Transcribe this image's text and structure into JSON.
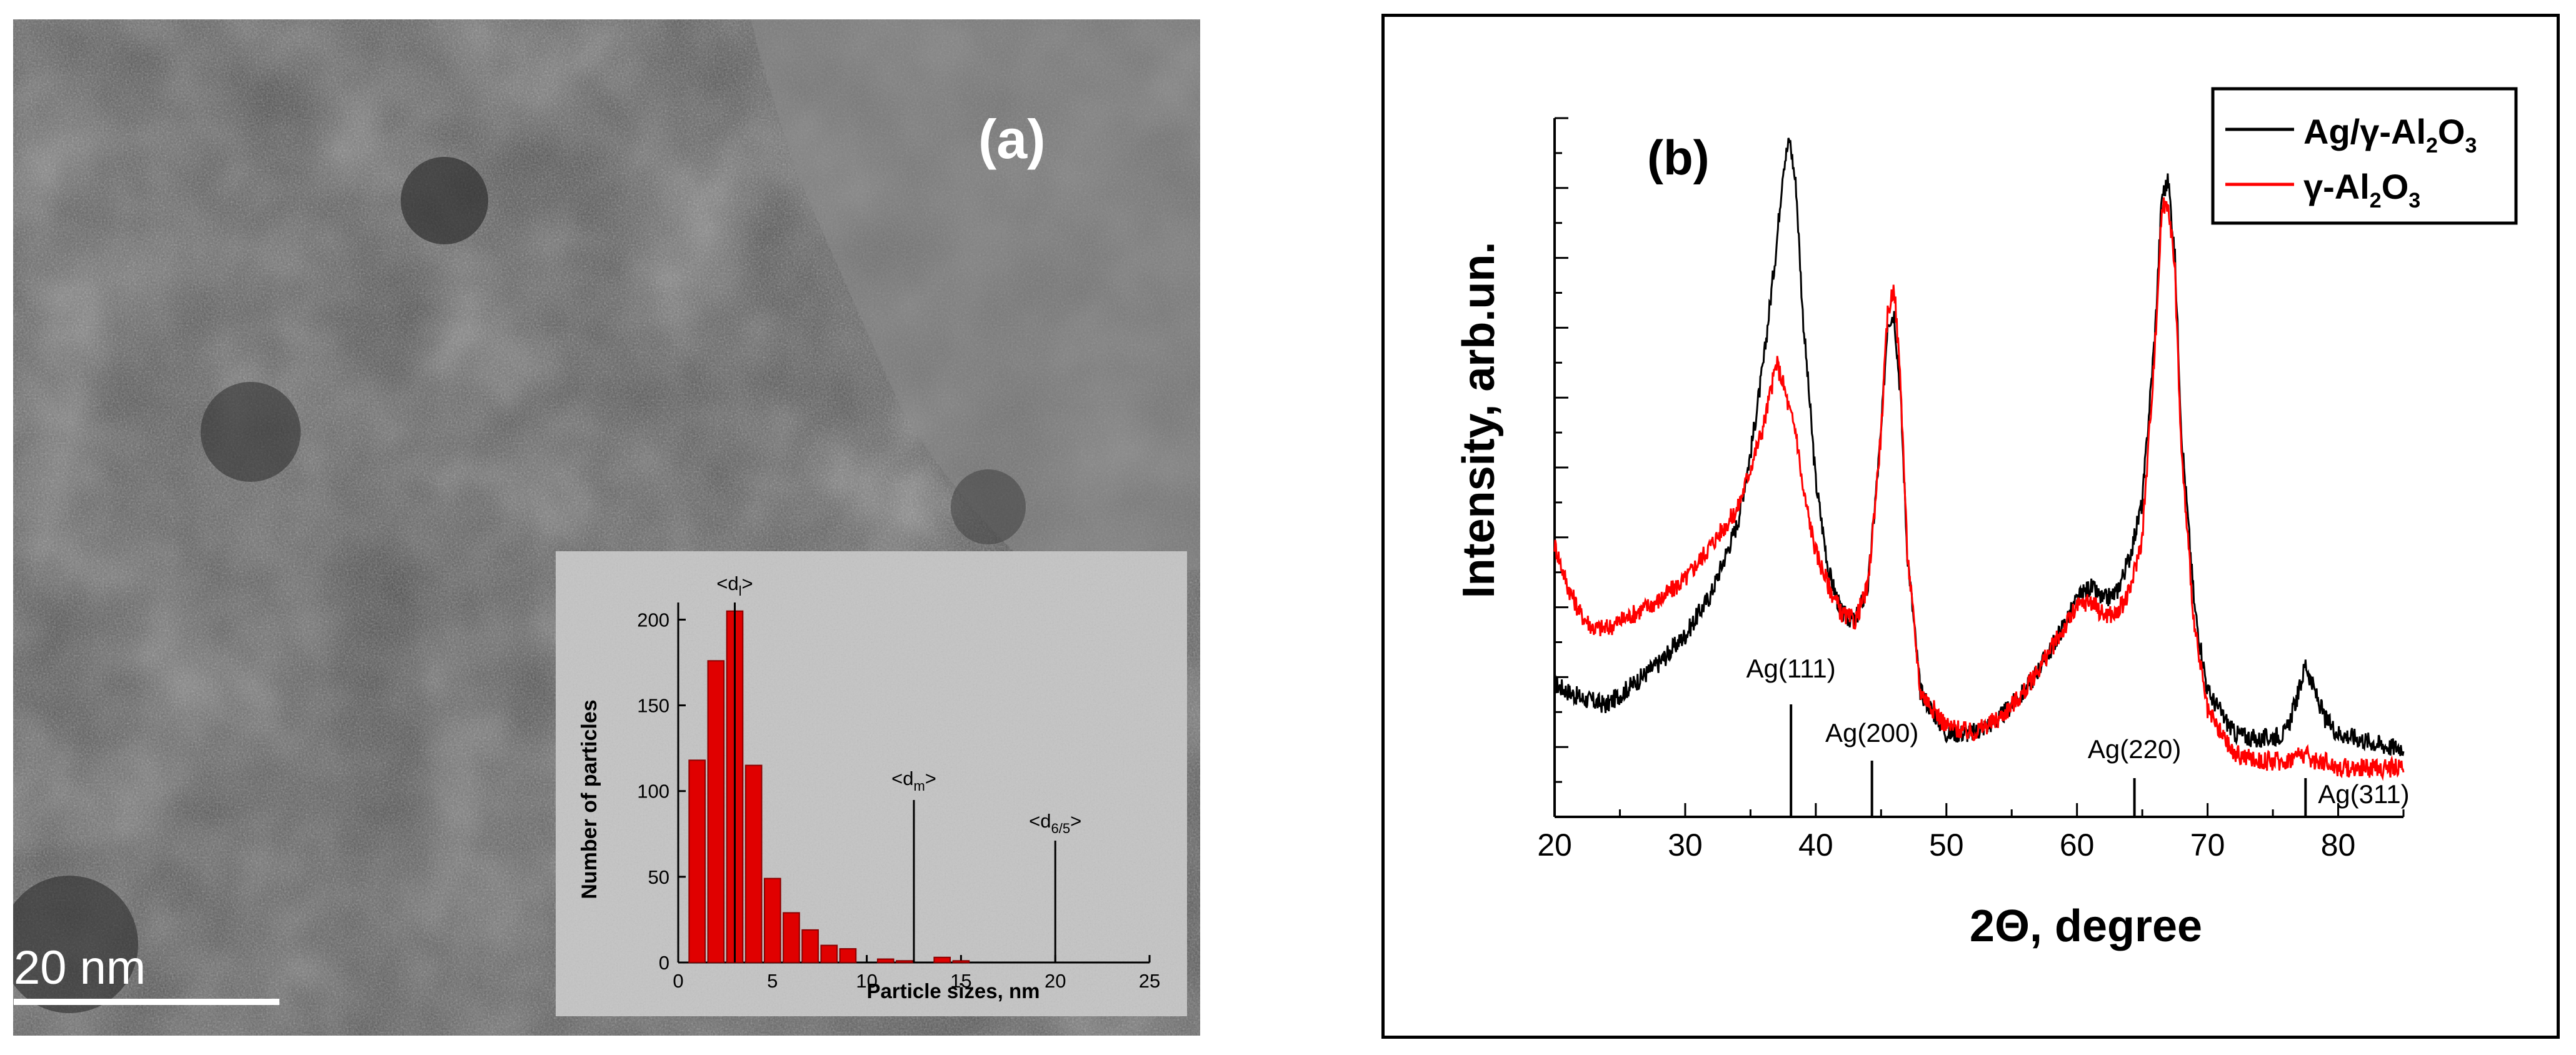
{
  "panel_a": {
    "label": "(a)",
    "scale_bar": "20 nm"
  },
  "chart_data": [
    {
      "type": "bar",
      "name": "particle-size-histogram-inset",
      "title": "",
      "xlabel": "Particle sizes, nm",
      "ylabel": "Number of particles",
      "xlim": [
        0,
        25
      ],
      "ylim": [
        0,
        210
      ],
      "xticks": [
        0,
        5,
        10,
        15,
        20,
        25
      ],
      "yticks": [
        0,
        50,
        100,
        150,
        200
      ],
      "bar_width": 0.85,
      "bar_color": "#e00000",
      "categories": [
        1,
        2,
        3,
        4,
        5,
        6,
        7,
        8,
        9,
        11,
        12,
        14,
        15
      ],
      "values": [
        118,
        176,
        205,
        115,
        49,
        29,
        19,
        10,
        8,
        2,
        1,
        3,
        1
      ],
      "annotations": [
        {
          "label": "<d",
          "sub": "l",
          "close": ">",
          "x": 3
        },
        {
          "label": "<d",
          "sub": "m",
          "close": ">",
          "x": 12.5
        },
        {
          "label": "<d",
          "sub": "6/5",
          "close": ">",
          "x": 20
        }
      ]
    },
    {
      "type": "line",
      "name": "xrd-pattern",
      "panel_label": "(b)",
      "xlabel": "2Θ, degree",
      "ylabel": "Intensity, arb.un.",
      "xlim": [
        20,
        85
      ],
      "ylim": [
        0,
        1.0
      ],
      "xticks": [
        20,
        30,
        40,
        50,
        60,
        70,
        80
      ],
      "legend_position": "top-right",
      "series": [
        {
          "name": "Ag/γ-Al2O3",
          "legend_main": "Ag/γ-Al",
          "legend_sub1": "2",
          "legend_mid": "O",
          "legend_sub2": "3",
          "color": "#000000",
          "x": [
            20,
            22,
            24,
            26,
            28,
            30,
            32,
            34,
            35,
            36,
            37,
            37.5,
            38,
            38.5,
            39,
            40,
            41,
            42,
            43,
            44,
            45,
            45.5,
            46,
            46.5,
            47,
            48,
            50,
            52,
            54,
            56,
            58,
            60,
            61,
            62,
            63,
            64,
            65,
            66,
            66.5,
            67,
            67.5,
            68,
            69,
            70,
            72,
            74,
            76,
            77,
            77.5,
            78,
            79,
            80,
            82,
            84,
            85
          ],
          "values": [
            0.19,
            0.17,
            0.16,
            0.19,
            0.22,
            0.26,
            0.32,
            0.42,
            0.52,
            0.65,
            0.82,
            0.93,
            0.97,
            0.9,
            0.72,
            0.48,
            0.35,
            0.29,
            0.28,
            0.33,
            0.55,
            0.71,
            0.72,
            0.6,
            0.38,
            0.18,
            0.12,
            0.12,
            0.14,
            0.18,
            0.24,
            0.31,
            0.33,
            0.31,
            0.32,
            0.37,
            0.45,
            0.7,
            0.89,
            0.91,
            0.8,
            0.55,
            0.3,
            0.18,
            0.12,
            0.11,
            0.12,
            0.18,
            0.22,
            0.19,
            0.14,
            0.12,
            0.11,
            0.1,
            0.1
          ]
        },
        {
          "name": "γ-Al2O3",
          "legend_main": "γ-Al",
          "legend_sub1": "2",
          "legend_mid": "O",
          "legend_sub2": "3",
          "color": "#ff0000",
          "x": [
            20,
            21,
            22,
            23,
            24,
            26,
            28,
            30,
            32,
            34,
            35,
            36,
            37,
            37.5,
            38,
            38.5,
            39,
            40,
            41,
            42,
            43,
            44,
            45,
            45.5,
            46,
            46.5,
            47,
            48,
            50,
            52,
            54,
            56,
            58,
            60,
            61,
            62,
            63,
            64,
            65,
            66,
            66.5,
            67,
            67.5,
            68,
            69,
            70,
            72,
            74,
            76,
            77,
            77.5,
            78,
            79,
            80,
            82,
            84,
            85
          ],
          "values": [
            0.39,
            0.33,
            0.29,
            0.27,
            0.27,
            0.29,
            0.31,
            0.34,
            0.39,
            0.44,
            0.5,
            0.56,
            0.65,
            0.62,
            0.58,
            0.55,
            0.47,
            0.38,
            0.33,
            0.29,
            0.28,
            0.33,
            0.55,
            0.72,
            0.76,
            0.62,
            0.38,
            0.18,
            0.13,
            0.12,
            0.14,
            0.18,
            0.24,
            0.3,
            0.31,
            0.29,
            0.29,
            0.32,
            0.4,
            0.68,
            0.87,
            0.88,
            0.78,
            0.52,
            0.27,
            0.15,
            0.09,
            0.08,
            0.08,
            0.09,
            0.09,
            0.08,
            0.08,
            0.07,
            0.07,
            0.07,
            0.07
          ]
        }
      ],
      "reference_lines": [
        {
          "label": "Ag(111)",
          "x": 38.1
        },
        {
          "label": "Ag(200)",
          "x": 44.3
        },
        {
          "label": "Ag(220)",
          "x": 64.4
        },
        {
          "label": "Ag(311)",
          "x": 77.5
        }
      ]
    }
  ]
}
